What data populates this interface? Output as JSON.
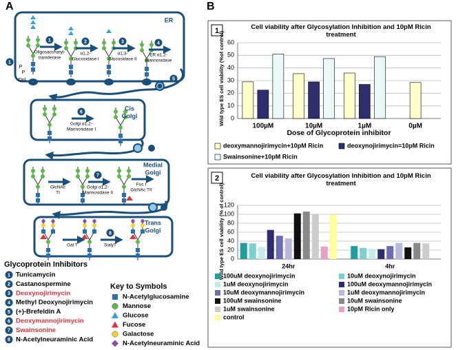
{
  "panel_labels": [
    "A",
    "B"
  ],
  "diagram": {
    "compartments": [
      {
        "label_lines": [
          "ER"
        ]
      },
      {
        "label_lines": [
          "Cis",
          "Golgi"
        ]
      },
      {
        "label_lines": [
          "Medial",
          "Golgi"
        ]
      },
      {
        "label_lines": [
          "Trans",
          "Golgi"
        ]
      }
    ],
    "enzymes": [
      {
        "step": "1",
        "label_lines": [
          "Oligosaccharyl-",
          "transferase"
        ]
      },
      {
        "step": "2",
        "label_lines": [
          "α1,2-",
          "Glucosidase I"
        ]
      },
      {
        "step": "3",
        "label_lines": [
          "α1,3-",
          "Glucosidase II"
        ]
      },
      {
        "step": "4",
        "label_lines": [
          "ER α1,2-",
          "Mannosidase"
        ]
      },
      {
        "step": "6",
        "label_lines": [
          "Golgi α1,2-",
          "Mannosidase I"
        ]
      },
      {
        "label_lines": [
          "GlcNAc",
          "TI"
        ]
      },
      {
        "step": "7",
        "label_lines": [
          "Golgi α1,2-",
          "Mannosidase II"
        ]
      },
      {
        "label_lines": [
          "Fuc I",
          "GlcNAc TII"
        ]
      },
      {
        "label_lines": [
          "Gal T"
        ]
      },
      {
        "step": "8",
        "label_lines": [
          "SialyT"
        ]
      }
    ],
    "dolichol": {
      "step": "1",
      "labels": [
        "P",
        "P",
        "Dol"
      ]
    },
    "exit_step": "5"
  },
  "inhibitors": {
    "title": "Glycoprotein Inhibitors",
    "items": [
      {
        "number": "1",
        "name": "Tunicamycin",
        "highlight": false
      },
      {
        "number": "2",
        "name": "Castanospermine",
        "highlight": false
      },
      {
        "number": "3",
        "name": "Deoxynojirimycin",
        "highlight": true
      },
      {
        "number": "4",
        "name": "Methyl Deoxynojirimycin",
        "highlight": false
      },
      {
        "number": "5",
        "name": "(+)-Brefeldin A",
        "highlight": false
      },
      {
        "number": "6",
        "name": "Deoxymannojirimycin",
        "highlight": true
      },
      {
        "number": "7",
        "name": "Swainsonine",
        "highlight": true
      },
      {
        "number": "8",
        "name": "N-Acetylneuraminic Acid",
        "highlight": false
      }
    ]
  },
  "symbol_key": {
    "title": "Key to Symbols",
    "items": [
      {
        "name": "N-Acetylglucosamine",
        "shape": "square",
        "color": "#2a6fb0"
      },
      {
        "name": "Mannose",
        "shape": "circle",
        "color": "#5cb84a"
      },
      {
        "name": "Glucose",
        "shape": "triangle",
        "color": "#3aa0d8"
      },
      {
        "name": "Fucose",
        "shape": "triangle",
        "color": "#d9363e"
      },
      {
        "name": "Galactose",
        "shape": "circle",
        "color": "#f2d22e"
      },
      {
        "name": "N-Acetylneuraminic Acid",
        "shape": "diamond",
        "color": "#8a4fa8"
      }
    ]
  },
  "chart_data": [
    {
      "type": "bar",
      "panel": "1",
      "title": "Cell viability after Glycosylation Inhibition and 10pM Ricin treatment",
      "y_label": "Wild type ES cell viability (%of control)",
      "x_label": "Dose of Glycoprotein inhibitor",
      "categories": [
        "100µM",
        "10µM",
        "1µM",
        "0µM"
      ],
      "series": [
        {
          "name": "deoxymannojirimycin+10pM Ricin",
          "color": "#ffffcc",
          "values": [
            29,
            35.5,
            36,
            28.5
          ]
        },
        {
          "name": "deoxynojirimycin=10pM Ricin",
          "color": "#2e2e6e",
          "values": [
            22.5,
            29,
            27,
            null
          ]
        },
        {
          "name": "Swainsonine+10pM Ricin",
          "color": "#eaf8f8",
          "values": [
            51,
            47.5,
            49,
            null
          ]
        }
      ],
      "ylim": [
        0,
        60
      ],
      "yticks": [
        0,
        10,
        20,
        30,
        40,
        50,
        60
      ],
      "grid": true,
      "bar_outline": true
    },
    {
      "type": "bar",
      "panel": "2",
      "title": "Cell viability after Glycosylation Inhibition and 10pM Ricin treatment",
      "y_label": "Wild type ES cell viability (% of control)",
      "categories": [
        "24hr",
        "4hr"
      ],
      "series": [
        {
          "name": "100uM deoxynojirimycin",
          "color": "#1f9ea0",
          "values": [
            36,
            29
          ]
        },
        {
          "name": "10uM deoxynojirimycin",
          "color": "#7fcfcf",
          "values": [
            35,
            25
          ]
        },
        {
          "name": "1uM deoxynojirimycin",
          "color": "#c5eaea",
          "values": [
            27,
            23
          ]
        },
        {
          "name": "100uM deoxymannojirimycin",
          "color": "#2e2e6e",
          "values": [
            65,
            22
          ]
        },
        {
          "name": "10uM deoxymannojirimycin",
          "color": "#6c6cb0",
          "values": [
            52,
            29
          ]
        },
        {
          "name": "1uM deoxymannojirimycin",
          "color": "#b8b8dc",
          "values": [
            46,
            36
          ]
        },
        {
          "name": "100uM swainsonine",
          "color": "#111111",
          "values": [
            102,
            26
          ]
        },
        {
          "name": "10uM swainsonine",
          "color": "#888888",
          "values": [
            106,
            36
          ]
        },
        {
          "name": "1uM swainsonine",
          "color": "#cccccc",
          "values": [
            101,
            35
          ]
        },
        {
          "name": "10pM Ricin only",
          "color": "#e8a0c8",
          "values": [
            28,
            null
          ]
        },
        {
          "name": "control",
          "color": "#ffff99",
          "values": [
            99,
            null
          ]
        }
      ],
      "ylim": [
        0,
        120
      ],
      "yticks": [
        0,
        20,
        40,
        60,
        80,
        100,
        120
      ],
      "grid": true,
      "bar_outline": false
    }
  ]
}
